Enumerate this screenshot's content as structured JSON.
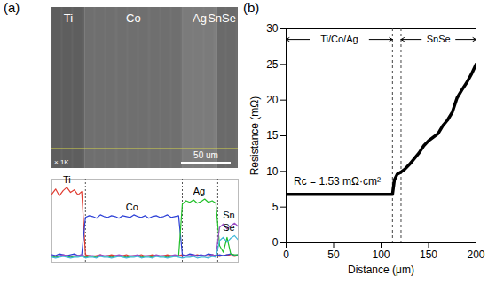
{
  "chart_data": [
    {
      "type": "line",
      "title": "(a)",
      "regions": [
        "Ti",
        "Co",
        "Ag",
        "SnSe"
      ],
      "magnification": "× 1K",
      "scale_bar": "50 um",
      "boundaries": [
        18,
        70,
        89
      ],
      "xlim": [
        0,
        100
      ],
      "ylim": [
        0,
        100
      ],
      "tick_labels": false,
      "x": [
        0,
        2,
        4,
        6,
        8,
        10,
        12,
        14,
        16,
        18,
        20,
        22,
        24,
        26,
        28,
        30,
        32,
        34,
        36,
        38,
        40,
        42,
        44,
        46,
        48,
        50,
        52,
        54,
        56,
        58,
        60,
        62,
        64,
        66,
        68,
        70,
        72,
        74,
        76,
        78,
        80,
        82,
        84,
        86,
        88,
        90,
        92,
        94,
        96,
        98,
        100
      ],
      "series": [
        {
          "name": "Ti",
          "color": "#e03c31",
          "values": [
            82,
            88,
            80,
            86,
            90,
            84,
            87,
            81,
            85,
            9,
            8,
            7,
            8,
            9,
            7,
            8,
            9,
            8,
            7,
            8,
            9,
            7,
            8,
            8,
            9,
            7,
            8,
            9,
            8,
            7,
            8,
            9,
            8,
            7,
            8,
            9,
            8,
            7,
            8,
            9,
            8,
            7,
            8,
            9,
            8,
            7,
            8,
            9,
            8,
            7,
            8
          ]
        },
        {
          "name": "Co",
          "color": "#2b3fd6",
          "values": [
            9,
            8,
            10,
            9,
            8,
            9,
            10,
            8,
            9,
            54,
            56,
            55,
            53,
            57,
            55,
            54,
            56,
            55,
            53,
            56,
            55,
            54,
            57,
            55,
            54,
            56,
            53,
            55,
            56,
            54,
            55,
            57,
            54,
            55,
            56,
            9,
            8,
            10,
            9,
            8,
            9,
            8,
            10,
            9,
            8,
            9,
            8,
            9,
            10,
            8,
            9
          ]
        },
        {
          "name": "Ag",
          "color": "#22c02a",
          "values": [
            7,
            6,
            7,
            8,
            7,
            6,
            7,
            7,
            8,
            6,
            7,
            7,
            6,
            8,
            7,
            7,
            6,
            7,
            8,
            7,
            6,
            7,
            7,
            8,
            6,
            7,
            7,
            6,
            8,
            7,
            7,
            6,
            7,
            8,
            7,
            70,
            74,
            72,
            75,
            71,
            73,
            76,
            72,
            74,
            71,
            20,
            12,
            30,
            10,
            9,
            9
          ]
        },
        {
          "name": "Sn",
          "color": "#9b4fc7",
          "values": [
            8,
            7,
            8,
            9,
            8,
            7,
            8,
            8,
            9,
            7,
            8,
            8,
            7,
            9,
            8,
            8,
            7,
            8,
            9,
            8,
            7,
            8,
            8,
            9,
            7,
            8,
            8,
            7,
            9,
            8,
            8,
            7,
            8,
            9,
            8,
            7,
            8,
            8,
            9,
            7,
            8,
            8,
            7,
            9,
            8,
            42,
            46,
            40,
            44,
            47,
            43
          ]
        },
        {
          "name": "Se",
          "color": "#3fb8d8",
          "values": [
            6,
            5,
            6,
            7,
            6,
            5,
            6,
            6,
            7,
            5,
            6,
            6,
            5,
            7,
            6,
            6,
            5,
            6,
            7,
            6,
            5,
            6,
            6,
            7,
            5,
            6,
            6,
            5,
            7,
            6,
            6,
            5,
            6,
            7,
            6,
            5,
            6,
            6,
            7,
            5,
            6,
            6,
            5,
            7,
            6,
            26,
            30,
            24,
            29,
            32,
            27
          ]
        }
      ]
    },
    {
      "type": "line",
      "title": "(b)",
      "x_label": "Distance (μm)",
      "y_label": "Resistance (mΩ)",
      "x": [
        0,
        10,
        20,
        30,
        40,
        50,
        60,
        70,
        80,
        90,
        100,
        110,
        112,
        114,
        117,
        121,
        125,
        130,
        135,
        140,
        145,
        150,
        155,
        160,
        165,
        170,
        175,
        180,
        185,
        190,
        195,
        200
      ],
      "values": [
        6.8,
        6.8,
        6.8,
        6.8,
        6.8,
        6.8,
        6.8,
        6.8,
        6.8,
        6.8,
        6.8,
        6.8,
        6.8,
        8.8,
        9.6,
        9.9,
        10.3,
        11,
        11.8,
        12.6,
        13.6,
        14.3,
        14.8,
        15.3,
        16.4,
        17.2,
        18.3,
        20.3,
        21.4,
        22.4,
        23.6,
        25
      ],
      "color": "#000000",
      "xlim": [
        0,
        200
      ],
      "xticks": [
        0,
        50,
        100,
        150,
        200
      ],
      "ylim": [
        0,
        30
      ],
      "yticks": [
        0,
        5,
        10,
        15,
        20,
        25,
        30
      ],
      "boundaries": [
        112,
        121
      ],
      "regions": [
        "Ti/Co/Ag",
        "SnSe"
      ],
      "annotation": "Rc = 1.53 mΩ·cm²"
    }
  ]
}
